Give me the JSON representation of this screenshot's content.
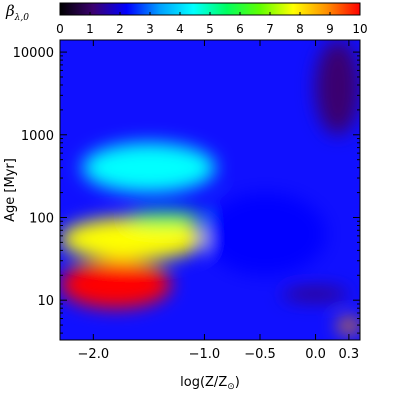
{
  "chart_data": {
    "type": "heatmap",
    "title": "",
    "xlabel_main": "log(Z/Z",
    "xlabel_sub": "⊙",
    "xlabel_close": ")",
    "ylabel": "Age [Myr]",
    "colorbar_label_main": "β",
    "colorbar_label_sub": "λ,0",
    "colorbar_range": [
      0,
      10
    ],
    "colorbar_ticks": [
      0,
      1,
      2,
      3,
      4,
      5,
      6,
      7,
      8,
      9,
      10
    ],
    "colorbar_tick_labels": [
      "0",
      "1",
      "2",
      "3",
      "4",
      "5",
      "6",
      "7",
      "8",
      "9",
      "10"
    ],
    "colormap": [
      "#000000",
      "#3b0070",
      "#0000ff",
      "#00a0ff",
      "#00ffff",
      "#00ff60",
      "#60ff00",
      "#ffff00",
      "#ff9000",
      "#ff0000"
    ],
    "x_range": [
      -2.3,
      0.4
    ],
    "x_ticks": [
      -2.0,
      -1.0,
      -0.5,
      0.0,
      0.3
    ],
    "x_tick_labels": [
      "−2.0",
      "−1.0",
      "−0.5",
      "0.0",
      "0.3"
    ],
    "y_scale": "log",
    "y_range_myr": [
      3.3,
      14000
    ],
    "y_ticks": [
      10,
      100,
      1000,
      10000
    ],
    "y_tick_labels": [
      "10",
      "100",
      "1000",
      "10000"
    ],
    "grid": false,
    "regions": [
      {
        "value": 9.5,
        "x": [
          -2.3,
          -1.3
        ],
        "age_myr": [
          8,
          30
        ]
      },
      {
        "value": 7.5,
        "x": [
          -2.3,
          -1.0
        ],
        "age_myr": [
          30,
          100
        ]
      },
      {
        "value": 5.5,
        "x": [
          -1.7,
          -1.0
        ],
        "age_myr": [
          80,
          120
        ]
      },
      {
        "value": 4.5,
        "x": [
          -2.1,
          -0.9
        ],
        "age_myr": [
          200,
          800
        ]
      },
      {
        "value": 2.5,
        "x": [
          -1.0,
          0.1
        ],
        "age_myr": [
          20,
          200
        ]
      },
      {
        "value": 1.2,
        "x": [
          0.0,
          0.4
        ],
        "age_myr": [
          1000,
          14000
        ]
      },
      {
        "value": 0.9,
        "x": [
          -0.3,
          0.3
        ],
        "age_myr": [
          10,
          14
        ]
      },
      {
        "value": 8.5,
        "x": [
          0.2,
          0.4
        ],
        "age_myr": [
          4,
          6
        ]
      }
    ]
  }
}
